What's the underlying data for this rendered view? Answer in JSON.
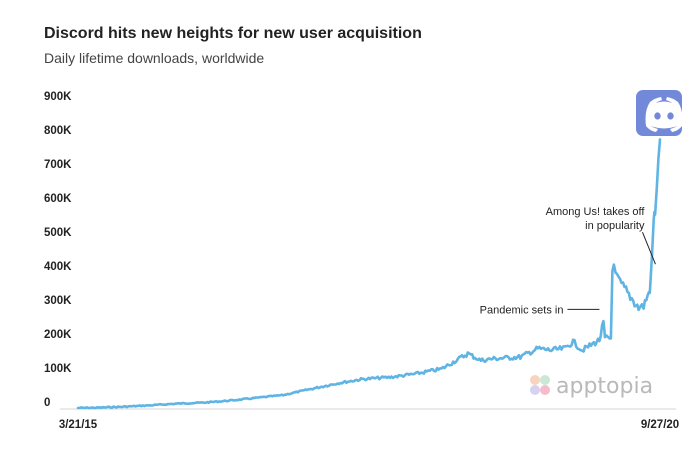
{
  "chart_data": {
    "type": "line",
    "title": "Discord hits new heights for new user acquisition",
    "subtitle": "Daily lifetime downloads, worldwide",
    "xlabel": "",
    "ylabel": "",
    "ylim": [
      0,
      900000
    ],
    "y_ticks": [
      {
        "value": 0,
        "label": "0"
      },
      {
        "value": 100000,
        "label": "100K"
      },
      {
        "value": 200000,
        "label": "200K"
      },
      {
        "value": 300000,
        "label": "300K"
      },
      {
        "value": 400000,
        "label": "400K"
      },
      {
        "value": 500000,
        "label": "500K"
      },
      {
        "value": 600000,
        "label": "600K"
      },
      {
        "value": 700000,
        "label": "700K"
      },
      {
        "value": 800000,
        "label": "800K"
      },
      {
        "value": 900000,
        "label": "900K"
      }
    ],
    "x_ticks": [
      {
        "date": "2015-03-21",
        "label": "3/21/15"
      },
      {
        "date": "2020-09-27",
        "label": "9/27/20"
      }
    ],
    "grid": false,
    "legend": "none",
    "series": [
      {
        "color": "#5fb4e4",
        "points": [
          [
            "2015-03-21",
            0
          ],
          [
            "2015-06-01",
            1000
          ],
          [
            "2015-09-01",
            4000
          ],
          [
            "2015-12-01",
            8000
          ],
          [
            "2016-03-01",
            13000
          ],
          [
            "2016-06-01",
            16000
          ],
          [
            "2016-09-01",
            22000
          ],
          [
            "2016-12-01",
            30000
          ],
          [
            "2017-03-01",
            38000
          ],
          [
            "2017-06-01",
            55000
          ],
          [
            "2017-09-01",
            72000
          ],
          [
            "2017-12-01",
            85000
          ],
          [
            "2018-03-01",
            90000
          ],
          [
            "2018-06-01",
            100000
          ],
          [
            "2018-09-01",
            115000
          ],
          [
            "2018-12-01",
            160000
          ],
          [
            "2019-01-15",
            140000
          ],
          [
            "2019-03-01",
            145000
          ],
          [
            "2019-06-01",
            150000
          ],
          [
            "2019-08-01",
            175000
          ],
          [
            "2019-09-15",
            170000
          ],
          [
            "2019-11-01",
            175000
          ],
          [
            "2019-12-01",
            195000
          ],
          [
            "2020-01-01",
            170000
          ],
          [
            "2020-02-01",
            185000
          ],
          [
            "2020-03-01",
            200000
          ],
          [
            "2020-03-15",
            250000
          ],
          [
            "2020-03-20",
            205000
          ],
          [
            "2020-04-10",
            205000
          ],
          [
            "2020-04-15",
            420000
          ],
          [
            "2020-05-01",
            380000
          ],
          [
            "2020-06-01",
            345000
          ],
          [
            "2020-07-01",
            310000
          ],
          [
            "2020-07-15",
            295000
          ],
          [
            "2020-08-01",
            300000
          ],
          [
            "2020-08-20",
            340000
          ],
          [
            "2020-08-25",
            360000
          ],
          [
            "2020-09-05",
            550000
          ],
          [
            "2020-09-10",
            580000
          ],
          [
            "2020-09-27",
            790000
          ]
        ]
      }
    ],
    "annotations": [
      {
        "lines": [
          "Pandemic sets in"
        ],
        "date": "2020-03-15",
        "value": 290000
      },
      {
        "lines": [
          "Among Us! takes off",
          "in popularity"
        ],
        "date": "2020-08-25",
        "value": 420000
      }
    ]
  },
  "watermark": {
    "text": "apptopia"
  },
  "icon": {
    "name": "discord-logo-icon",
    "bg_color": "#7289da"
  }
}
